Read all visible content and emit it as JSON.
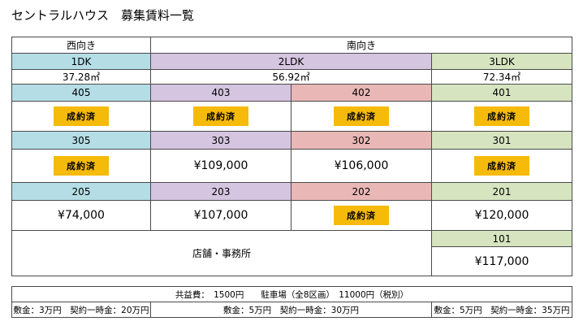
{
  "title": "セントラルハウス　募集賃料一覧",
  "orientation": {
    "west": "西向き",
    "south": "南向き"
  },
  "types": {
    "t1dk": "1DK",
    "t2ldk": "2LDK",
    "t3ldk": "3LDK"
  },
  "areas": {
    "a1dk": "37.28㎡",
    "a2ldk": "56.92㎡",
    "a3ldk": "72.34㎡"
  },
  "badge_text": "成約済",
  "units": {
    "r405": "405",
    "r403": "403",
    "r402": "402",
    "r401": "401",
    "r305": "305",
    "r303": "303",
    "r302": "302",
    "r301": "301",
    "r205": "205",
    "r203": "203",
    "r202": "202",
    "r201": "201",
    "r101": "101"
  },
  "prices": {
    "p303": "¥109,000",
    "p302": "¥106,000",
    "p205": "¥74,000",
    "p203": "¥107,000",
    "p201": "¥120,000",
    "p101": "¥117,000"
  },
  "store": "店舗・事務所",
  "footer": {
    "fees": "共益費：　1500円　　駐車場（全8区画）　11000円（税別）",
    "deposit_1dk": "敷金：3万円　契約一時金：20万円",
    "deposit_2ldk": "敷金：5万円　契約一時金：30万円",
    "deposit_3ldk": "敷金：5万円　契約一時金：35万円"
  }
}
